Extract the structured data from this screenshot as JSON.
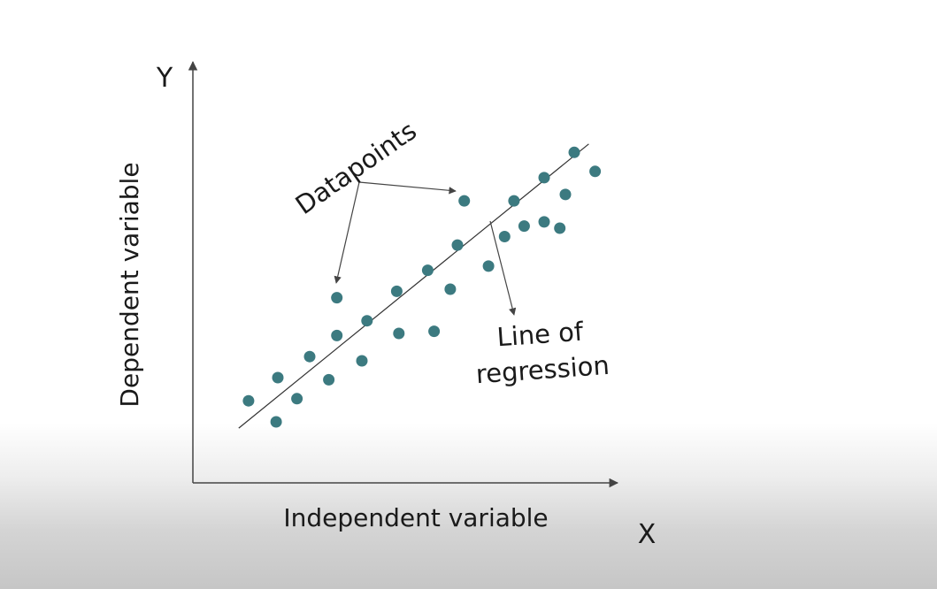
{
  "labels": {
    "y_axis_letter": "Y",
    "x_axis_letter": "X",
    "y_axis_title": "Dependent variable",
    "x_axis_title": "Independent variable",
    "datapoints_callout": "Datapoints",
    "regression_callout_line1": "Line of",
    "regression_callout_line2": "regression"
  },
  "colors": {
    "point": "#3c7a80",
    "axis": "#444444",
    "line": "#333333"
  },
  "chart_data": {
    "type": "scatter",
    "xlabel": "Independent variable",
    "ylabel": "Dependent variable",
    "xlim": [
      0,
      100
    ],
    "ylim": [
      0,
      100
    ],
    "grid": false,
    "points": [
      {
        "x": 13.1,
        "y": 19.5
      },
      {
        "x": 19.6,
        "y": 14.5
      },
      {
        "x": 20.0,
        "y": 25.0
      },
      {
        "x": 24.5,
        "y": 20.0
      },
      {
        "x": 27.5,
        "y": 30.0
      },
      {
        "x": 32.0,
        "y": 24.5
      },
      {
        "x": 33.9,
        "y": 35.0
      },
      {
        "x": 33.9,
        "y": 44.0
      },
      {
        "x": 39.8,
        "y": 29.0
      },
      {
        "x": 41.0,
        "y": 38.5
      },
      {
        "x": 48.0,
        "y": 45.5
      },
      {
        "x": 48.5,
        "y": 35.5
      },
      {
        "x": 55.3,
        "y": 50.5
      },
      {
        "x": 56.8,
        "y": 36.0
      },
      {
        "x": 60.6,
        "y": 46.0
      },
      {
        "x": 62.3,
        "y": 56.5
      },
      {
        "x": 63.9,
        "y": 67.0
      },
      {
        "x": 69.6,
        "y": 51.5
      },
      {
        "x": 73.4,
        "y": 58.5
      },
      {
        "x": 75.6,
        "y": 67.0
      },
      {
        "x": 78.0,
        "y": 61.0
      },
      {
        "x": 82.7,
        "y": 62.0
      },
      {
        "x": 82.7,
        "y": 72.5
      },
      {
        "x": 86.4,
        "y": 60.5
      },
      {
        "x": 87.7,
        "y": 68.5
      },
      {
        "x": 89.8,
        "y": 78.5
      },
      {
        "x": 94.7,
        "y": 74.0
      }
    ],
    "regression_line": {
      "x1": 10.8,
      "y1": 13.0,
      "x2": 93.2,
      "y2": 80.5
    },
    "callouts": {
      "datapoints_arrow_targets": [
        7,
        16
      ],
      "regression_anchor_x": 68.0
    }
  }
}
